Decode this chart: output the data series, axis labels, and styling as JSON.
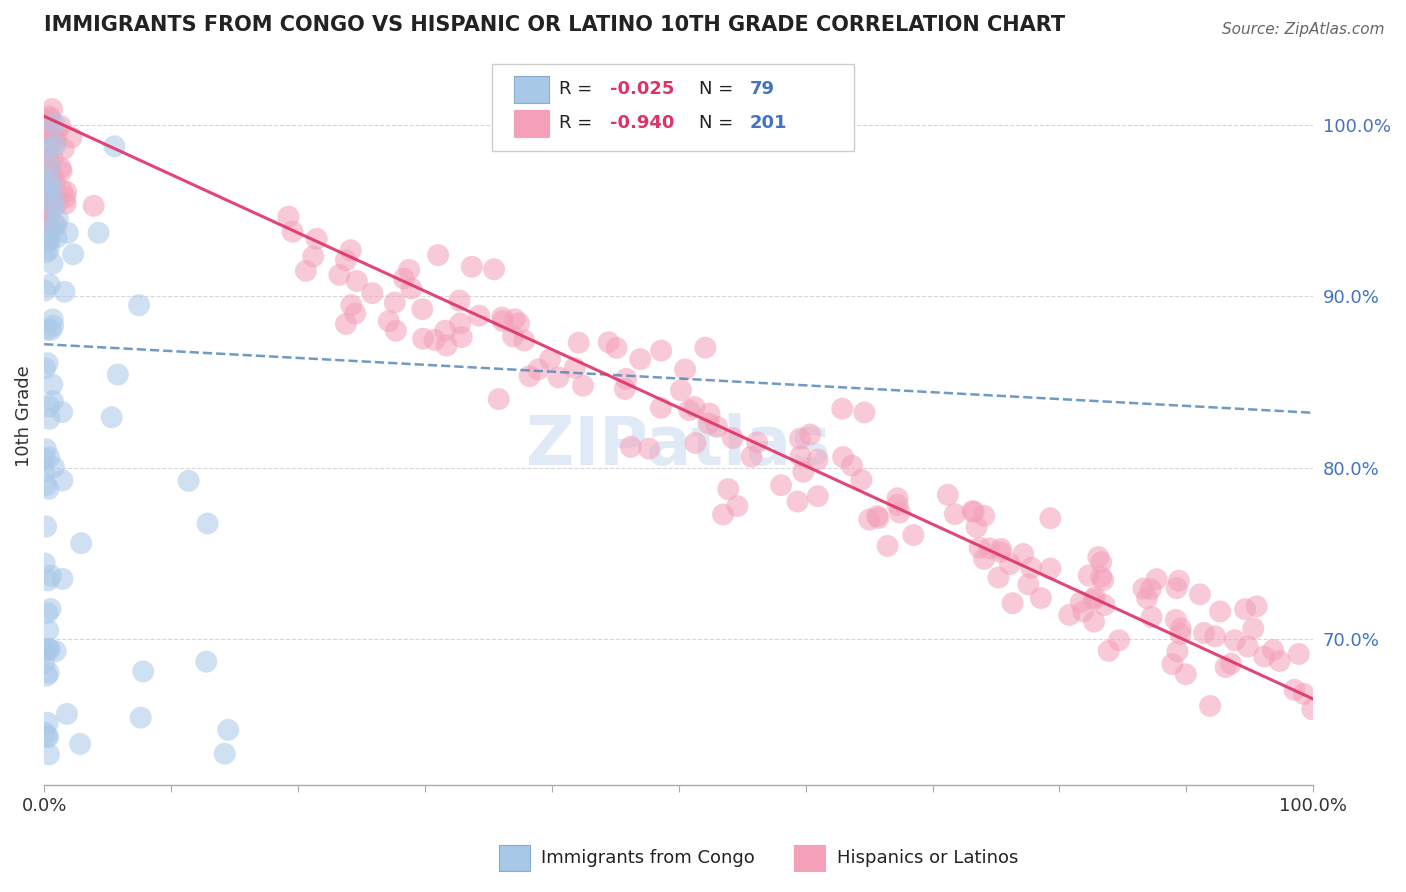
{
  "title": "IMMIGRANTS FROM CONGO VS HISPANIC OR LATINO 10TH GRADE CORRELATION CHART",
  "source": "Source: ZipAtlas.com",
  "ylabel": "10th Grade",
  "right_yticks": [
    "70.0%",
    "80.0%",
    "90.0%",
    "100.0%"
  ],
  "right_ytick_vals": [
    0.7,
    0.8,
    0.9,
    1.0
  ],
  "congo_R": -0.025,
  "congo_N": 79,
  "hispanic_R": -0.94,
  "hispanic_N": 201,
  "congo_color": "#a8c8e8",
  "hispanic_color": "#f4a0b8",
  "congo_line_color": "#5588bb",
  "hispanic_line_color": "#dd3366",
  "bg_color": "#ffffff",
  "title_color": "#222222",
  "source_color": "#666666",
  "right_tick_color": "#4472c4",
  "legend_r_color": "#dd3366",
  "legend_n_color": "#4472c4",
  "watermark_color": "#ccddf0",
  "grid_color": "#cccccc",
  "xlim": [
    0.0,
    1.0
  ],
  "ylim": [
    0.615,
    1.045
  ]
}
